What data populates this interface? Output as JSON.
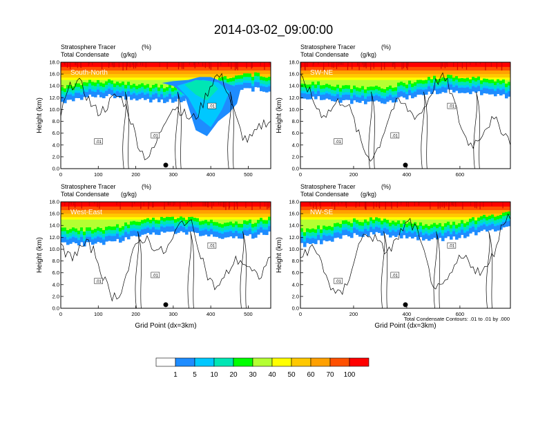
{
  "title": "2014-03-02_09:00:00",
  "footnote": "Total Condensate Contours: .01 to .01 by .000",
  "colorbar": {
    "labels": [
      "1",
      "5",
      "10",
      "20",
      "30",
      "40",
      "50",
      "60",
      "70",
      "100"
    ],
    "colors": [
      "#ffffff",
      "#1e8cff",
      "#00c8ff",
      "#00e6b4",
      "#00ff00",
      "#b4ff32",
      "#ffff00",
      "#ffc800",
      "#ffa000",
      "#ff5000",
      "#ff0000"
    ]
  },
  "contour_label": ".01",
  "chart_data": [
    {
      "type": "heatmap",
      "panel_label": "South-North",
      "line1_label": "Stratosphere Tracer",
      "line1_unit": "(%)",
      "line2_label": "Total Condensate",
      "line2_unit": "(g/kg)",
      "ylabel": "Height (km)",
      "xlabel": "",
      "xlim": [
        0,
        560
      ],
      "ylim": [
        0,
        18
      ],
      "xticks": [
        "0",
        "100",
        "200",
        "300",
        "400",
        "500"
      ],
      "yticks": [
        "0.0",
        "2.0",
        "4.0",
        "6.0",
        "8.0",
        "10.0",
        "12.0",
        "14.0",
        "16.0",
        "18.0"
      ],
      "marker_x": 280
    },
    {
      "type": "heatmap",
      "panel_label": "SW-NE",
      "line1_label": "Stratosphere Tracer",
      "line1_unit": "(%)",
      "line2_label": "Total Condensate",
      "line2_unit": "(g/kg)",
      "ylabel": "Height (km)",
      "xlabel": "",
      "xlim": [
        0,
        790
      ],
      "ylim": [
        0,
        18
      ],
      "xticks": [
        "0",
        "200",
        "400",
        "600"
      ],
      "yticks": [
        "0.0",
        "2.0",
        "4.0",
        "6.0",
        "8.0",
        "10.0",
        "12.0",
        "14.0",
        "16.0",
        "18.0"
      ],
      "marker_x": 395
    },
    {
      "type": "heatmap",
      "panel_label": "West-East",
      "line1_label": "Stratosphere Tracer",
      "line1_unit": "(%)",
      "line2_label": "Total Condensate",
      "line2_unit": "(g/kg)",
      "ylabel": "Height (km)",
      "xlabel": "Grid Point (dx=3km)",
      "xlim": [
        0,
        560
      ],
      "ylim": [
        0,
        18
      ],
      "xticks": [
        "0",
        "100",
        "200",
        "300",
        "400",
        "500"
      ],
      "yticks": [
        "0.0",
        "2.0",
        "4.0",
        "6.0",
        "8.0",
        "10.0",
        "12.0",
        "14.0",
        "16.0",
        "18.0"
      ],
      "marker_x": 280
    },
    {
      "type": "heatmap",
      "panel_label": "NW-SE",
      "line1_label": "Stratosphere Tracer",
      "line1_unit": "(%)",
      "line2_label": "Total Condensate",
      "line2_unit": "(g/kg)",
      "ylabel": "Height (km)",
      "xlabel": "Grid Point (dx=3km)",
      "xlim": [
        0,
        790
      ],
      "ylim": [
        0,
        18
      ],
      "xticks": [
        "0",
        "200",
        "400",
        "600"
      ],
      "yticks": [
        "0.0",
        "2.0",
        "4.0",
        "6.0",
        "8.0",
        "10.0",
        "12.0",
        "14.0",
        "16.0",
        "18.0"
      ],
      "marker_x": 395
    }
  ]
}
